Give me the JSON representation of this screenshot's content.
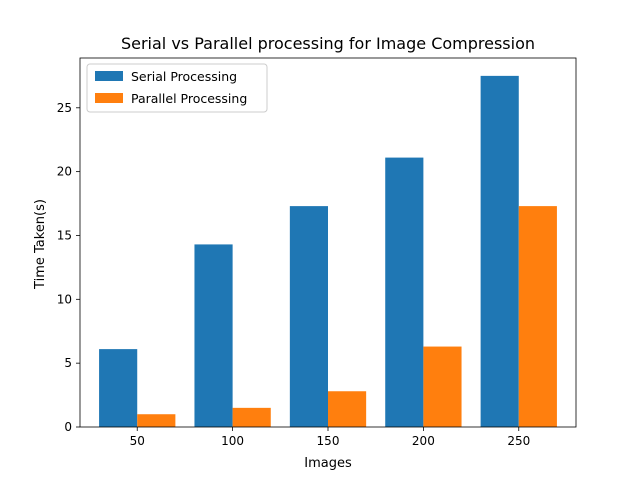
{
  "chart_data": {
    "type": "bar",
    "title": "Serial vs Parallel processing for Image Compression",
    "xlabel": "Images",
    "ylabel": "Time Taken(s)",
    "categories": [
      "50",
      "100",
      "150",
      "200",
      "250"
    ],
    "series": [
      {
        "name": "Serial Processing",
        "color": "#1f77b4",
        "values": [
          6.1,
          14.3,
          17.3,
          21.1,
          27.5
        ]
      },
      {
        "name": "Parallel Processing",
        "color": "#ff7f0e",
        "values": [
          1.0,
          1.5,
          2.8,
          6.3,
          17.3
        ]
      }
    ],
    "ylim": [
      0,
      28.9
    ],
    "yticks": [
      0,
      5,
      10,
      15,
      20,
      25
    ],
    "grid": false,
    "legend_position": "top-left"
  }
}
